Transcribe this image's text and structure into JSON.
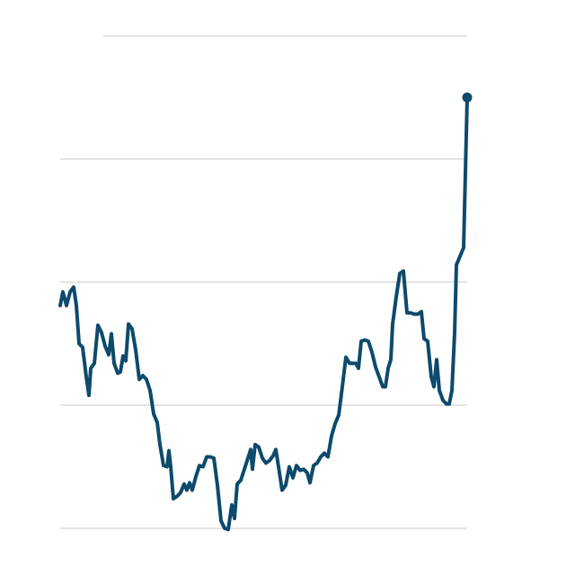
{
  "chart_data": {
    "type": "line",
    "x": [
      0,
      3,
      7,
      11,
      15,
      18,
      21,
      25,
      29,
      32,
      34,
      38,
      42,
      46,
      50,
      54,
      57,
      60,
      64,
      67,
      70,
      73,
      76,
      80,
      84,
      88,
      92,
      96,
      100,
      104,
      108,
      111,
      115,
      119,
      121,
      123,
      126,
      130,
      134,
      138,
      141,
      144,
      147,
      151,
      155,
      159,
      163,
      167,
      171,
      175,
      179,
      183,
      187,
      191,
      194,
      197,
      201,
      205,
      209,
      212,
      214,
      217,
      221,
      225,
      229,
      233,
      237,
      240,
      243,
      247,
      251,
      255,
      259,
      263,
      267,
      271,
      275,
      278,
      282,
      286,
      290,
      294,
      298,
      302,
      306,
      310,
      314,
      318,
      322,
      326,
      329,
      332,
      335,
      339,
      343,
      347,
      351,
      355,
      359,
      362,
      365,
      368,
      370,
      374,
      378,
      382,
      386,
      390,
      394,
      398,
      402,
      405,
      409,
      413,
      416,
      419,
      422,
      426,
      430,
      433,
      436,
      439,
      441,
      445,
      449,
      453
    ],
    "values": [
      1.81,
      1.92,
      1.81,
      1.92,
      1.96,
      1.81,
      1.5,
      1.47,
      1.23,
      1.08,
      1.3,
      1.34,
      1.65,
      1.59,
      1.48,
      1.41,
      1.58,
      1.34,
      1.26,
      1.27,
      1.4,
      1.36,
      1.66,
      1.62,
      1.45,
      1.21,
      1.24,
      1.21,
      1.12,
      0.93,
      0.86,
      0.68,
      0.51,
      0.5,
      0.63,
      0.5,
      0.24,
      0.26,
      0.29,
      0.36,
      0.31,
      0.37,
      0.31,
      0.42,
      0.51,
      0.5,
      0.58,
      0.58,
      0.57,
      0.35,
      0.06,
      0,
      -0.01,
      0.19,
      0.08,
      0.36,
      0.39,
      0.48,
      0.57,
      0.64,
      0.48,
      0.68,
      0.66,
      0.57,
      0.53,
      0.55,
      0.59,
      0.64,
      0.5,
      0.31,
      0.35,
      0.5,
      0.41,
      0.51,
      0.47,
      0.48,
      0.45,
      0.37,
      0.51,
      0.53,
      0.58,
      0.61,
      0.58,
      0.75,
      0.85,
      0.92,
      1.15,
      1.39,
      1.34,
      1.34,
      1.34,
      1.3,
      1.52,
      1.53,
      1.52,
      1.43,
      1.31,
      1.23,
      1.15,
      1.15,
      1.3,
      1.37,
      1.66,
      1.88,
      2.07,
      2.09,
      1.75,
      1.75,
      1.74,
      1.74,
      1.76,
      1.54,
      1.52,
      1.23,
      1.15,
      1.37,
      1.12,
      1.04,
      1.01,
      1.01,
      1.12,
      1.59,
      2.14,
      2.21,
      2.28,
      3.5
    ],
    "color": "#0d4a6b",
    "xlim": [
      0,
      453
    ],
    "ylim": [
      0,
      4
    ],
    "yticks": [
      0,
      1,
      2,
      3,
      4
    ],
    "grid": true
  }
}
